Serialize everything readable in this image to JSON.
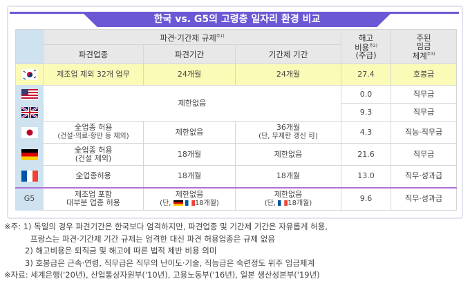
{
  "title": "한국 vs. G5의 고령층 일자리 환경 비교",
  "header": {
    "group": "파견·기간제 규제",
    "group_note": "주1)",
    "col1": "파견업종",
    "col2": "파견기간",
    "col3": "기간제 기간",
    "col4_l1": "해고",
    "col4_l2": "비용",
    "col4_note": "주2)",
    "col4_l3": "(주급)",
    "col5_l1": "주된",
    "col5_l2": "임금",
    "col5_l3": "체계",
    "col5_note": "주3)"
  },
  "rows": [
    {
      "country": "korea-flag",
      "c1": "제조업 제외 32개 업무",
      "c2": "24개월",
      "c3": "24개월",
      "cost": "27.4",
      "wage": "호봉급"
    },
    {
      "country": "us-flag",
      "merged": "제한없음",
      "cost": "0.0",
      "wage": "직무급"
    },
    {
      "country": "uk-flag",
      "cost": "9.3",
      "wage": "직무급"
    },
    {
      "country": "japan-flag",
      "c1": "全업종 허용",
      "c1b": "(건설·의료·항만 등 제외)",
      "c2": "제한없음",
      "c3": "36개월",
      "c3b": "(단, 무제한 갱신 可)",
      "cost": "4.3",
      "wage": "직능·직무급"
    },
    {
      "country": "germany-flag",
      "c1": "全업종 허용",
      "c1b": "(건설 제외)",
      "c2": "18개월",
      "c3": "제한없음",
      "cost": "21.6",
      "wage": "직무급"
    },
    {
      "country": "france-flag",
      "c1": "全업종허용",
      "c2": "18개월",
      "c3": "18개월",
      "cost": "13.0",
      "wage": "직무·성과급"
    },
    {
      "country": "G5",
      "c1": "제조업 포함",
      "c1b": "대부분 업종 허용",
      "c2": "제한없음",
      "c2b_pre": "(단,",
      "c2b_post": "18개월)",
      "c3": "제한없음",
      "c3b_pre": "(단,",
      "c3b_post": "18개월)",
      "cost": "9.6",
      "wage": "직무·성과급"
    }
  ],
  "notes": [
    "※주: 1) 독일의 경우 파견기간은 한국보다 엄격하지만, 파견업종 및 기간제 기간은 자유롭게 허용,",
    "프랑스는 파견·기간제 기간 규제는 엄격한 대신 파견 허용업종은 규제 없음",
    "2) 해고비용은 퇴직금 및 해고에 따른 법적 제반 비용 의미",
    "3) 호봉급은 근속·연령, 직무급은 직무의 난이도·기술, 직능급은 숙련정도 위주 임금체계",
    "※자료: 세계은행('20년), 산업통상자원부('10년), 고용노동부('16년), 일본 생산성본부('19년)"
  ],
  "colors": {
    "accent": "#6a58d4",
    "highlight_row": "#fbfbb8",
    "flag_column": "#cfe2ef",
    "g5_divider": "#b070d8"
  }
}
